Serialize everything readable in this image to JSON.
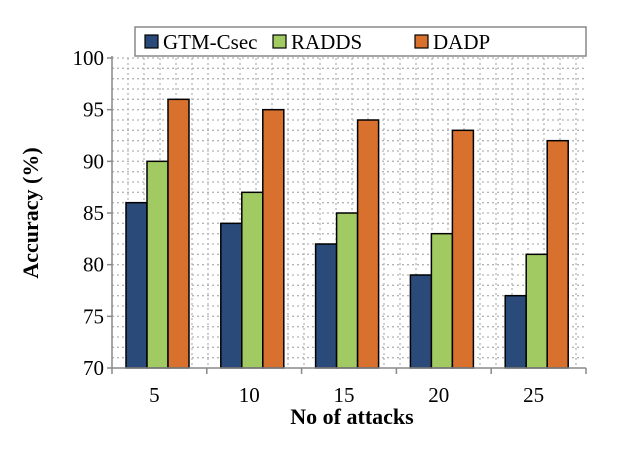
{
  "chart_data": {
    "type": "bar",
    "title": "",
    "xlabel": "No of attacks",
    "ylabel": "Accuracy (%)",
    "categories": [
      "5",
      "10",
      "15",
      "20",
      "25"
    ],
    "ylim": [
      70,
      100
    ],
    "yticks": [
      70,
      75,
      80,
      85,
      90,
      95,
      100
    ],
    "grid": true,
    "legend_position": "top",
    "series": [
      {
        "name": "GTM-Csec",
        "color": "#2a4a7a",
        "values": [
          86,
          84,
          82,
          79,
          77
        ]
      },
      {
        "name": "RADDS",
        "color": "#a1cb62",
        "values": [
          90,
          87,
          85,
          83,
          81
        ]
      },
      {
        "name": "DADP",
        "color": "#d9712e",
        "values": [
          96,
          95,
          94,
          93,
          92
        ]
      }
    ]
  }
}
